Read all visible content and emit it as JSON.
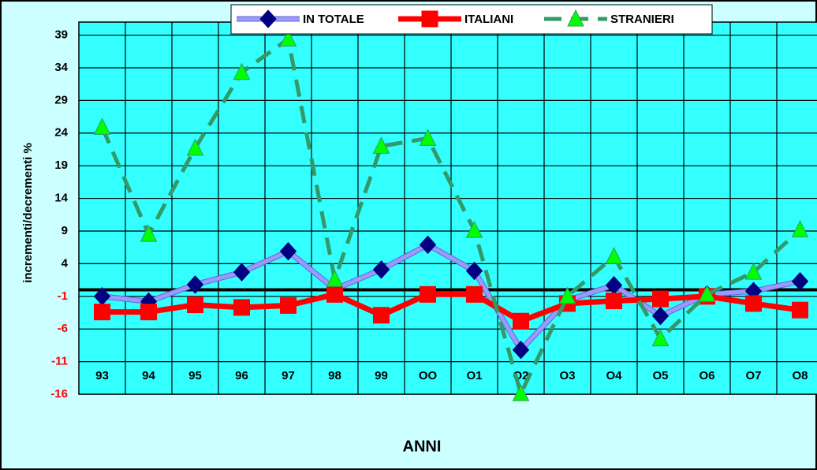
{
  "chart_data": {
    "type": "line",
    "y_label": "incrementi/decrementi  %",
    "x_label": "ANNI",
    "categories": [
      "93",
      "94",
      "95",
      "96",
      "97",
      "98",
      "99",
      "OO",
      "O1",
      "O2",
      "O3",
      "O4",
      "O5",
      "O6",
      "O7",
      "O8"
    ],
    "series": [
      {
        "name": "IN TOTALE",
        "color": "#9999ff",
        "marker": "diamond",
        "marker_color": "#000080",
        "values": [
          -1,
          -1.8,
          0.8,
          2.7,
          5.9,
          0.1,
          3.1,
          6.9,
          2.9,
          -9.2,
          -1.6,
          0.7,
          -4,
          -0.7,
          -0.2,
          1.3
        ]
      },
      {
        "name": "ITALIANI",
        "color": "#ff0000",
        "marker": "square",
        "marker_color": "#ff0000",
        "values": [
          -3.4,
          -3.4,
          -2.3,
          -2.7,
          -2.4,
          -0.7,
          -3.9,
          -0.7,
          -0.7,
          -4.8,
          -2.1,
          -1.7,
          -1.4,
          -1,
          -2.1,
          -3.1
        ]
      },
      {
        "name": "STRANIERI",
        "color": "#339966",
        "dashed": true,
        "marker": "triangle",
        "marker_color": "#00ff00",
        "values": [
          24.9,
          8.5,
          21.7,
          33.3,
          38.4,
          1.6,
          22,
          23.2,
          9.1,
          -15.9,
          -1,
          5.1,
          -7.5,
          -0.7,
          2.7,
          9.2
        ]
      }
    ],
    "ylim": [
      -16,
      41
    ],
    "yticks": [
      39,
      34,
      29,
      24,
      19,
      14,
      9,
      4,
      -1,
      -6,
      -11,
      -16
    ],
    "grid": true,
    "legend": "top"
  }
}
